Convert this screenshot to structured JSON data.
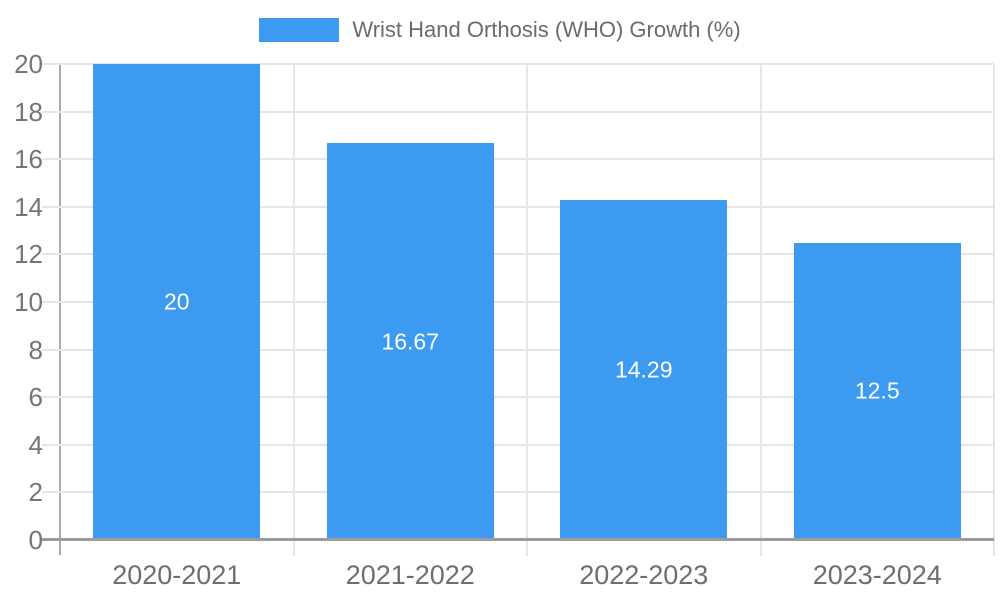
{
  "legend": {
    "label": "Wrist Hand Orthosis (WHO) Growth (%)"
  },
  "chart_data": {
    "type": "bar",
    "title": "Wrist Hand Orthosis (WHO) Growth (%)",
    "categories": [
      "2020-2021",
      "2021-2022",
      "2022-2023",
      "2023-2024"
    ],
    "series": [
      {
        "name": "Wrist Hand Orthosis (WHO) Growth (%)",
        "values": [
          20,
          16.67,
          14.29,
          12.5
        ]
      }
    ],
    "values": [
      20,
      16.67,
      14.29,
      12.5
    ],
    "bar_value_labels": [
      "20",
      "16.67",
      "14.29",
      "12.5"
    ],
    "xlabel": "",
    "ylabel": "",
    "ylim": [
      0,
      20
    ],
    "ytick_interval": 2,
    "ytick_labels": [
      "0",
      "2",
      "4",
      "6",
      "8",
      "10",
      "12",
      "14",
      "16",
      "18",
      "20"
    ],
    "grid": true,
    "legend_position": "top",
    "colors": {
      "bar": "#3C9BF0",
      "bar_label_text": "#ffffff",
      "axis_text": "#757575",
      "grid_line": "#e6e6e6",
      "axis_line": "#a9a9a9",
      "axis_line_dark": "#9c9c9c"
    }
  }
}
